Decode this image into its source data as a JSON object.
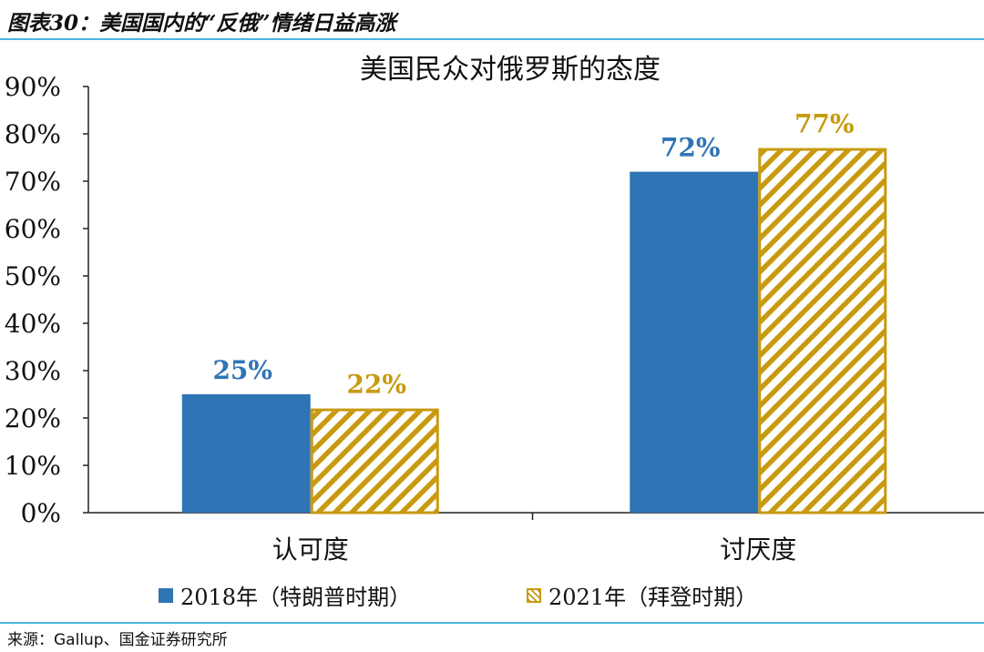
{
  "figure": {
    "title": "图表30：美国国内的“反俄”情绪日益高涨",
    "source": "来源：Gallup、国金证券研究所"
  },
  "colors": {
    "series_2018": "#2f74b5",
    "series_2021": "#c89a10",
    "rule": "#4ab4de"
  },
  "chart_data": {
    "type": "bar",
    "title": "美国民众对俄罗斯的态度",
    "categories": [
      "认可度",
      "讨厌度"
    ],
    "series": [
      {
        "name": "2018年（特朗普时期）",
        "values": [
          25,
          72
        ],
        "labels": [
          "25%",
          "72%"
        ],
        "style": "solid"
      },
      {
        "name": "2021年（拜登时期）",
        "values": [
          22,
          77
        ],
        "labels": [
          "22%",
          "77%"
        ],
        "style": "hatched"
      }
    ],
    "ylim": [
      0,
      90
    ],
    "yticks": [
      "0%",
      "10%",
      "20%",
      "30%",
      "40%",
      "50%",
      "60%",
      "70%",
      "80%",
      "90%"
    ],
    "legend": "bottom",
    "grid": false
  }
}
